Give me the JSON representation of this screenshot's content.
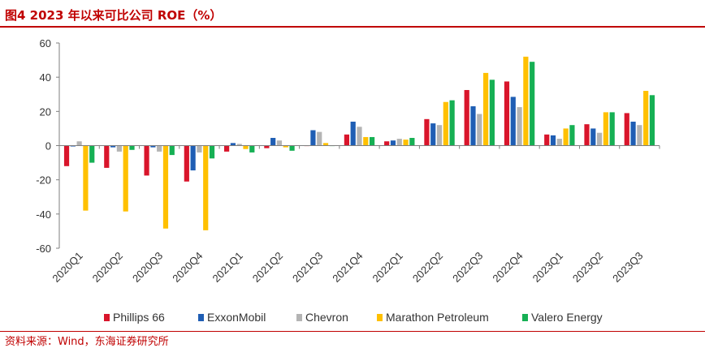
{
  "figure_title": "图4  2023 年以来可比公司 ROE（%）",
  "source": "资料来源：Wind，东海证券研究所",
  "chart_data": {
    "type": "bar",
    "title": "图4  2023 年以来可比公司 ROE（%）",
    "xlabel": "",
    "ylabel": "",
    "ylim": [
      -60,
      60
    ],
    "yticks": [
      -60,
      -40,
      -20,
      0,
      20,
      40,
      60
    ],
    "grid": false,
    "legend_position": "bottom",
    "categories": [
      "2020Q1",
      "2020Q2",
      "2020Q3",
      "2020Q4",
      "2021Q1",
      "2021Q2",
      "2021Q3",
      "2021Q4",
      "2022Q1",
      "2022Q2",
      "2022Q3",
      "2022Q4",
      "2023Q1",
      "2023Q2",
      "2023Q3"
    ],
    "series": [
      {
        "name": "Phillips 66",
        "color": "#d9152b",
        "values": [
          -12,
          -13,
          -17.5,
          -21,
          -3.5,
          -1.5,
          0,
          6.5,
          2.5,
          15.5,
          32.5,
          37.5,
          6.5,
          12.5,
          19
        ]
      },
      {
        "name": "ExxonMobil",
        "color": "#1f5eb4",
        "values": [
          -0.5,
          -1,
          -1,
          -14.5,
          1.5,
          4.5,
          9,
          14,
          3,
          13,
          23,
          28.5,
          6,
          10,
          14
        ]
      },
      {
        "name": "Chevron",
        "color": "#b4b4b4",
        "values": [
          2.5,
          -3.5,
          -3.5,
          -4,
          1,
          3,
          8,
          11,
          4,
          12,
          18.5,
          22.5,
          4,
          7.5,
          12
        ]
      },
      {
        "name": "Marathon Petroleum",
        "color": "#ffc000",
        "values": [
          -38,
          -38.5,
          -48.5,
          -49.5,
          -2,
          -1,
          1.5,
          5,
          3.5,
          25.5,
          42.5,
          52,
          10,
          19.5,
          32
        ]
      },
      {
        "name": "Valero Energy",
        "color": "#16b054",
        "values": [
          -10,
          -2.5,
          -5.5,
          -7.5,
          -4,
          -3,
          0,
          5,
          4.5,
          26.5,
          38.5,
          49,
          12,
          19.5,
          29.5
        ]
      }
    ]
  }
}
